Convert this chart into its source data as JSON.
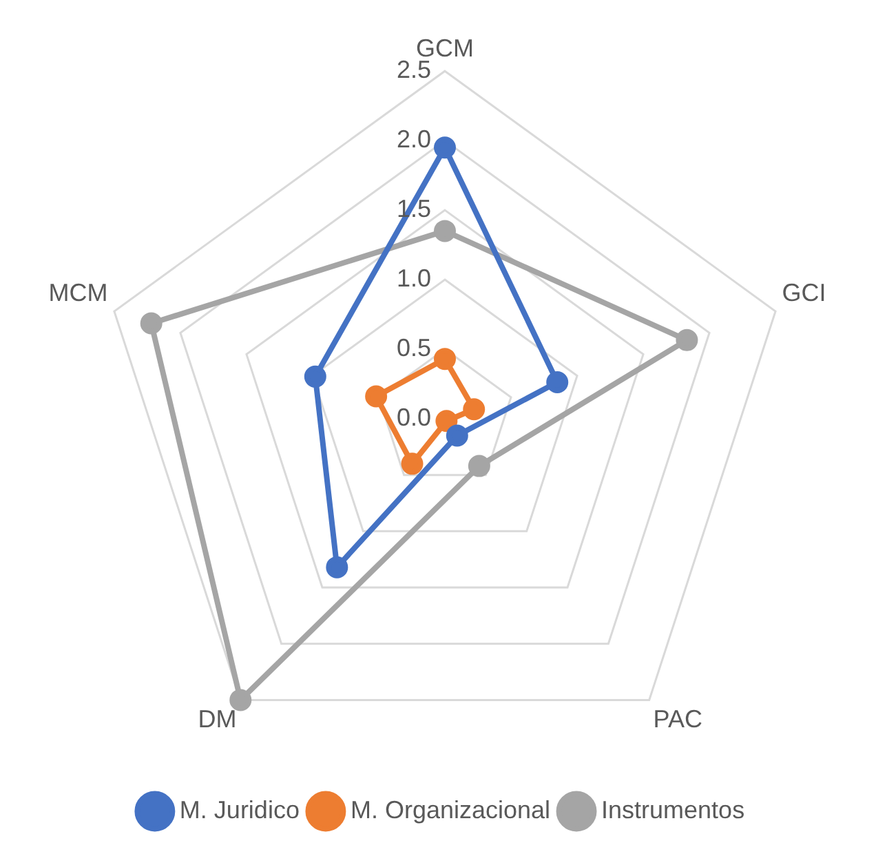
{
  "chart_data": {
    "type": "radar",
    "categories": [
      "GCM",
      "GCI",
      "PAC",
      "DM",
      "MCM"
    ],
    "series": [
      {
        "name": "M. Juridico",
        "color": "#4472c4",
        "values": [
          1.95,
          0.85,
          0.15,
          1.32,
          0.98
        ]
      },
      {
        "name": "M. Organizacional",
        "color": "#ed7d31",
        "values": [
          0.43,
          0.22,
          0.02,
          0.4,
          0.52
        ]
      },
      {
        "name": "Instrumentos",
        "color": "#a5a5a5",
        "values": [
          1.35,
          1.83,
          0.42,
          2.5,
          2.22
        ]
      }
    ],
    "ylim": [
      0,
      2.5
    ],
    "yticks": [
      {
        "value": 0,
        "label": "0.0"
      },
      0.5,
      {
        "value": 1,
        "label": "1.0"
      },
      1.5,
      {
        "value": 2,
        "label": "2.0"
      },
      2.5
    ],
    "grid": true,
    "legend": "bottom",
    "marker": "circle",
    "line_style": "solid"
  }
}
